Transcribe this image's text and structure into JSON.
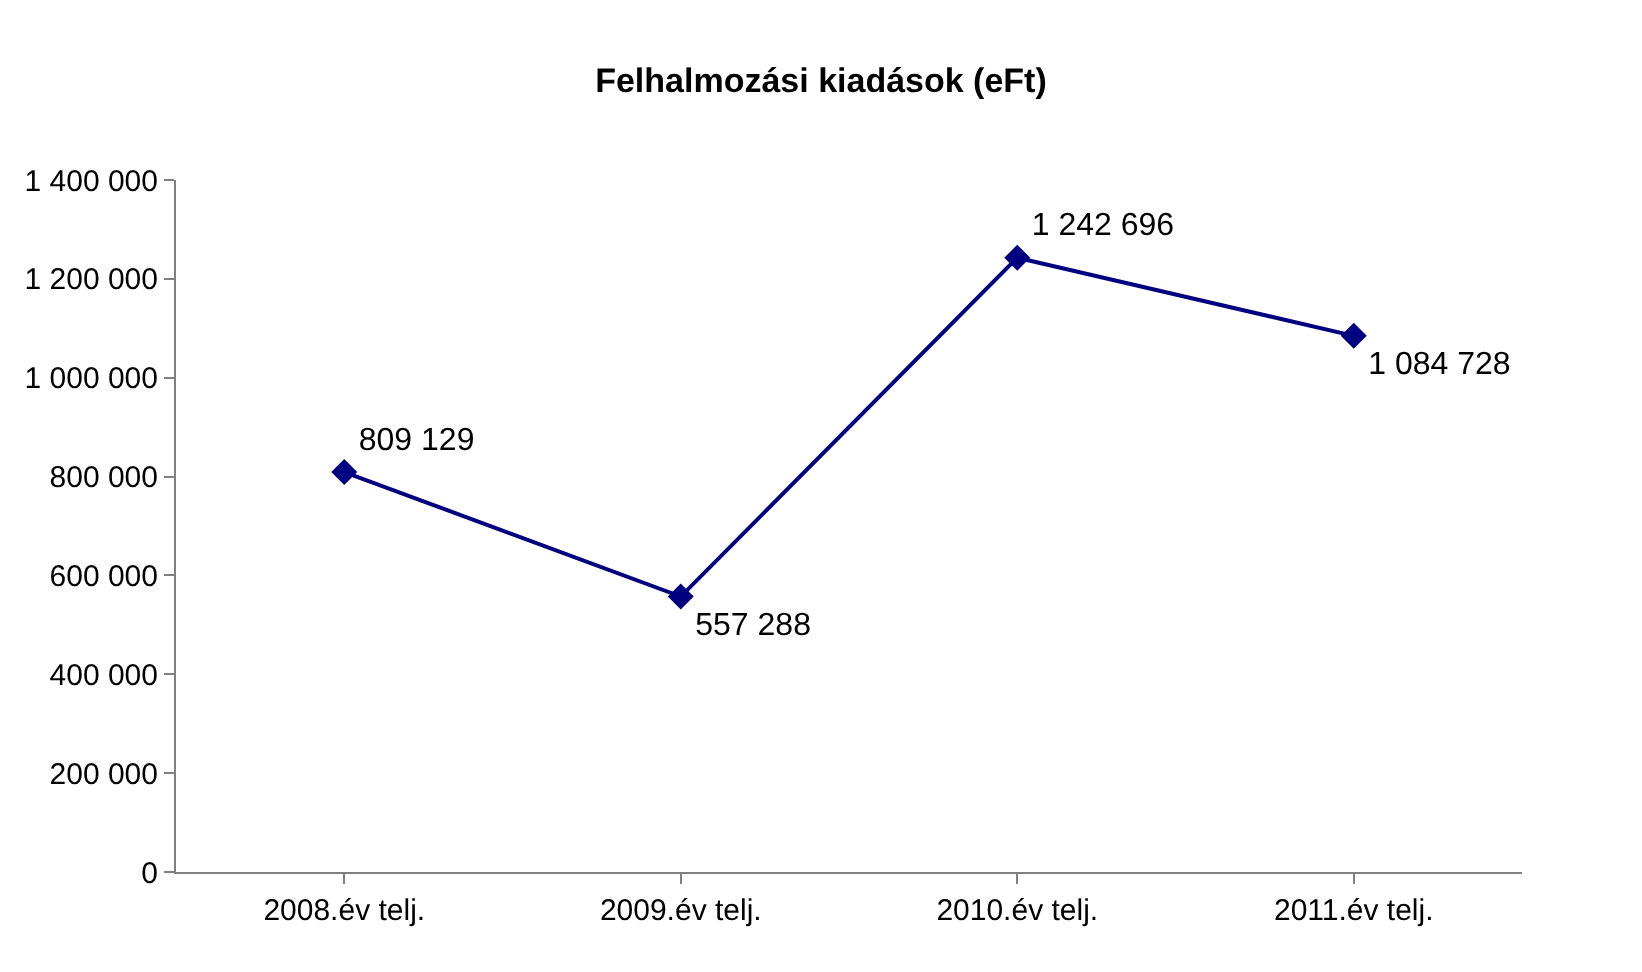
{
  "chart_data": {
    "type": "line",
    "title": "Felhalmozási kiadások (eFt)",
    "categories": [
      "2008.év telj.",
      "2009.év telj.",
      "2010.év telj.",
      "2011.év telj."
    ],
    "series": [
      {
        "color": "#000080",
        "values": [
          809129,
          557288,
          1242696,
          1084728
        ],
        "value_labels": [
          "809 129",
          "557 288",
          "1 242 696",
          "1 084 728"
        ]
      }
    ],
    "ylim": [
      0,
      1400000
    ],
    "yticks": [
      0,
      {
        "value": 200000,
        "label": "200 000"
      },
      {
        "value": 400000,
        "label": "400 000"
      },
      {
        "value": 600000,
        "label": "600 000"
      },
      {
        "value": 800000,
        "label": "800 000"
      },
      {
        "value": 1000000,
        "label": "1 000 000"
      },
      {
        "value": 1200000,
        "label": "1 200 000"
      },
      {
        "value": 1400000,
        "label": "1 400 000"
      }
    ],
    "grid": false,
    "marker": "diamond",
    "line_style": "solid"
  }
}
